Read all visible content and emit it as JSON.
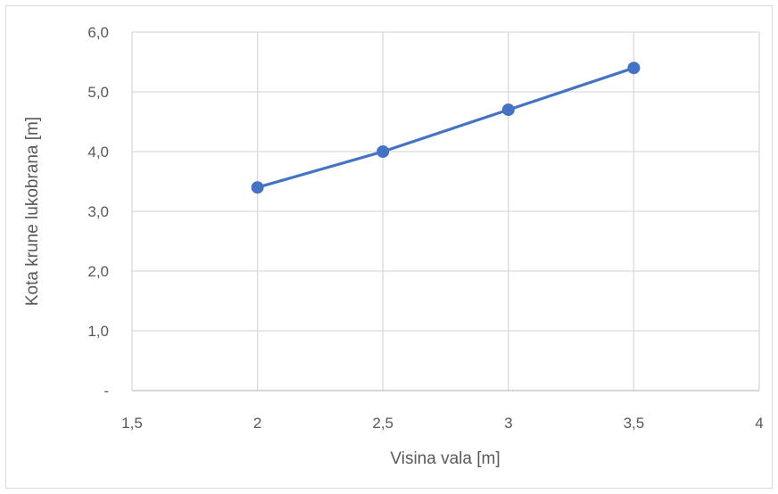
{
  "chart_data": {
    "type": "line",
    "title": "",
    "xlabel": "Visina vala [m]",
    "ylabel": "Kota krune lukobrana [m]",
    "x_ticks": [
      "1,5",
      "2",
      "2,5",
      "3",
      "3,5",
      "4"
    ],
    "x_tick_values": [
      1.5,
      2,
      2.5,
      3,
      3.5,
      4
    ],
    "y_ticks": [
      "-",
      "1,0",
      "2,0",
      "3,0",
      "4,0",
      "5,0",
      "6,0"
    ],
    "y_tick_values": [
      0,
      1,
      2,
      3,
      4,
      5,
      6
    ],
    "xlim": [
      1.5,
      4
    ],
    "ylim": [
      0,
      6
    ],
    "grid": true,
    "legend": "none",
    "series": [
      {
        "x": [
          2,
          2.5,
          3,
          3.5
        ],
        "y": [
          3.4,
          4.0,
          4.7,
          5.4
        ],
        "color": "#4472c4",
        "marker": "circle"
      }
    ]
  }
}
